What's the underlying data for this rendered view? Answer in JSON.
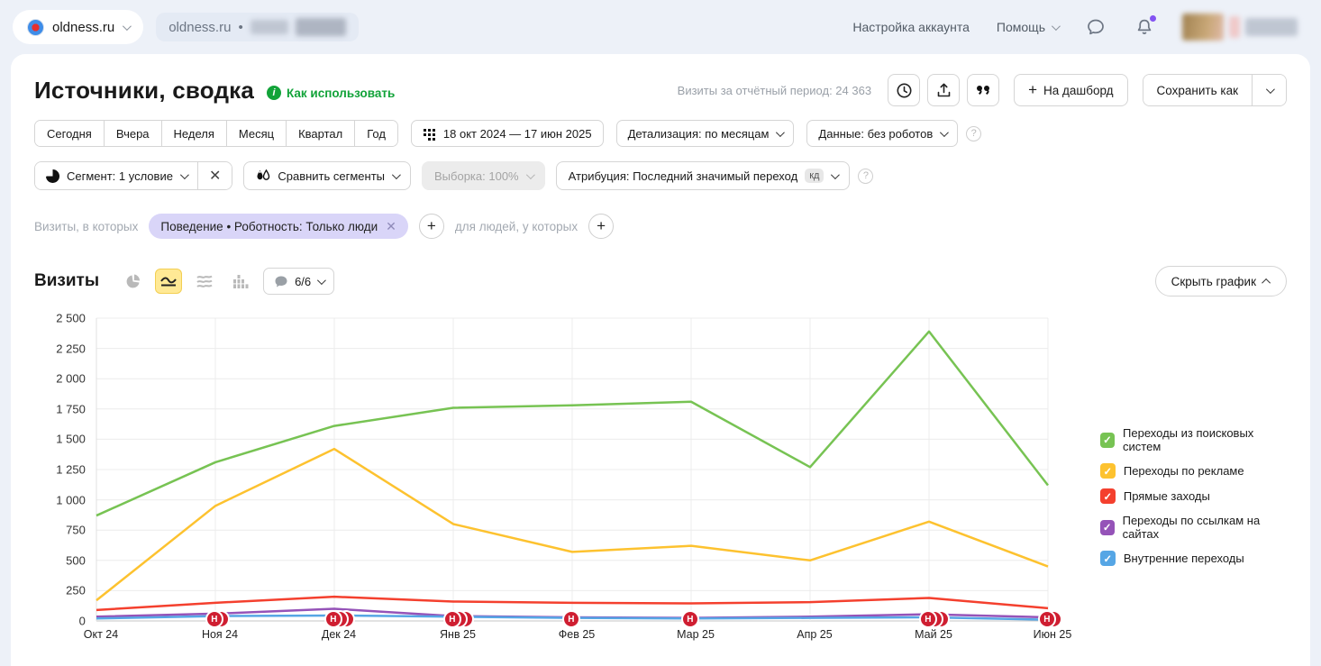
{
  "topbar": {
    "counter_name": "oldness.ru",
    "tab_label": "oldness.ru",
    "tab_separator": "•",
    "account_settings": "Настройка аккаунта",
    "help": "Помощь"
  },
  "header": {
    "title": "Источники, сводка",
    "how_to_use": "Как использовать",
    "visits_total": "Визиты за отчётный период: 24 363",
    "dashboard_button": "На дашборд",
    "save_as_button": "Сохранить как"
  },
  "filters": {
    "periods": [
      "Сегодня",
      "Вчера",
      "Неделя",
      "Месяц",
      "Квартал",
      "Год"
    ],
    "date_range": "18 окт 2024 — 17 июн 2025",
    "detalization": "Детализация: по месяцам",
    "data_mode": "Данные: без роботов",
    "segment": "Сегмент: 1 условие",
    "compare_segments": "Сравнить сегменты",
    "sampling": "Выборка: 100%",
    "attribution": "Атрибуция: Последний значимый переход",
    "attribution_badge": "кд"
  },
  "segment_row": {
    "visits_in_which": "Визиты, в которых",
    "chip": "Поведение • Роботность: Только люди",
    "for_people": "для людей, у которых"
  },
  "chart_header": {
    "metric": "Визиты",
    "comments_count": "6/6",
    "hide_chart": "Скрыть график"
  },
  "chart_data": {
    "type": "line",
    "title": "Визиты",
    "categories": [
      "Окт 24",
      "Ноя 24",
      "Дек 24",
      "Янв 25",
      "Фев 25",
      "Мар 25",
      "Апр 25",
      "Май 25",
      "Июн 25"
    ],
    "series": [
      {
        "name": "Переходы из поисковых систем",
        "color": "#77c353",
        "values": [
          870,
          1310,
          1610,
          1760,
          1780,
          1810,
          1270,
          2390,
          1120
        ]
      },
      {
        "name": "Переходы по рекламе",
        "color": "#fdc22f",
        "values": [
          170,
          950,
          1420,
          800,
          570,
          620,
          500,
          820,
          450
        ]
      },
      {
        "name": "Прямые заходы",
        "color": "#f4402e",
        "values": [
          90,
          150,
          200,
          160,
          150,
          145,
          155,
          190,
          105
        ]
      },
      {
        "name": "Переходы по ссылкам на сайтах",
        "color": "#9553b8",
        "values": [
          35,
          60,
          100,
          40,
          30,
          25,
          35,
          55,
          30
        ]
      },
      {
        "name": "Внутренние переходы",
        "color": "#56a6e5",
        "values": [
          20,
          40,
          45,
          35,
          25,
          20,
          25,
          30,
          10
        ]
      }
    ],
    "ylim": [
      0,
      2500
    ],
    "ytick_step": 250,
    "ytick_labels": [
      "0",
      "250",
      "500",
      "750",
      "1 000",
      "1 250",
      "1 500",
      "1 750",
      "2 000",
      "2 250",
      "2 500"
    ],
    "grid": true,
    "legend_position": "right",
    "annotation_letter": "Н",
    "annotations": [
      {
        "category": "Ноя 24",
        "count": 2
      },
      {
        "category": "Дек 24",
        "count": 3
      },
      {
        "category": "Янв 25",
        "count": 3
      },
      {
        "category": "Фев 25",
        "count": 1
      },
      {
        "category": "Мар 25",
        "count": 1
      },
      {
        "category": "Май 25",
        "count": 3
      },
      {
        "category": "Июн 25",
        "count": 2
      }
    ]
  }
}
